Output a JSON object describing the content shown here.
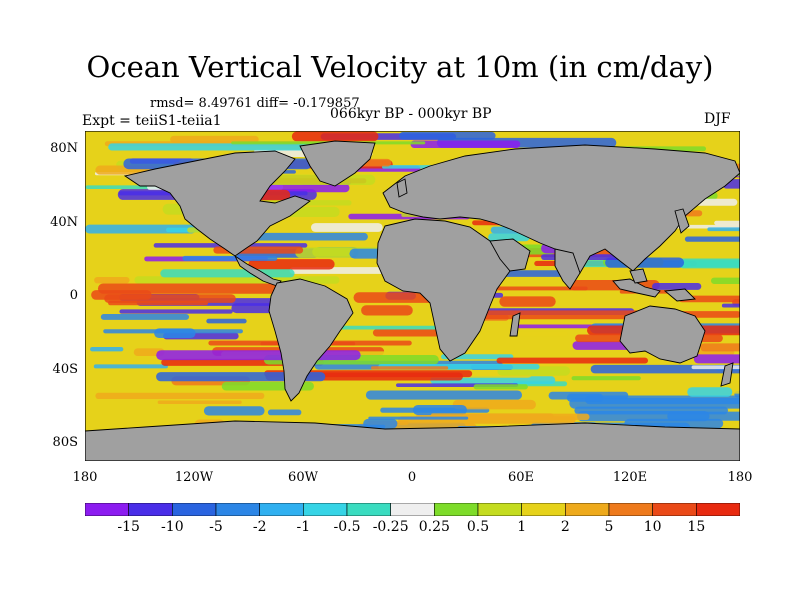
{
  "title": "Ocean Vertical Velocity at 10m (in cm/day)",
  "stats": "rmsd= 8.49761 diff= -0.179857",
  "period": "066kyr BP - 000kyr BP",
  "experiment": "Expt = teiiS1-teiia1",
  "season": "DJF",
  "y_axis_labels": [
    "80N",
    "40N",
    "0",
    "40S",
    "80S"
  ],
  "x_axis_labels": [
    "180",
    "120W",
    "60W",
    "0",
    "60E",
    "120E",
    "180"
  ],
  "colorbar": {
    "labels": [
      "-15",
      "-10",
      "-5",
      "-2",
      "-1",
      "-0.5",
      "-0.25",
      "0.25",
      "0.5",
      "1",
      "2",
      "5",
      "10",
      "15"
    ],
    "colors": [
      "#8c1cf0",
      "#4a2ee8",
      "#2a64e0",
      "#2c86e6",
      "#30b0f0",
      "#36d4e6",
      "#3adcc0",
      "#efefef",
      "#7edc2a",
      "#c4dc20",
      "#e6d21a",
      "#eeaa1c",
      "#ee7a1c",
      "#ea4a18",
      "#e82a10"
    ]
  },
  "colors": {
    "land": "#a0a0a0",
    "background": "#ffffff"
  }
}
